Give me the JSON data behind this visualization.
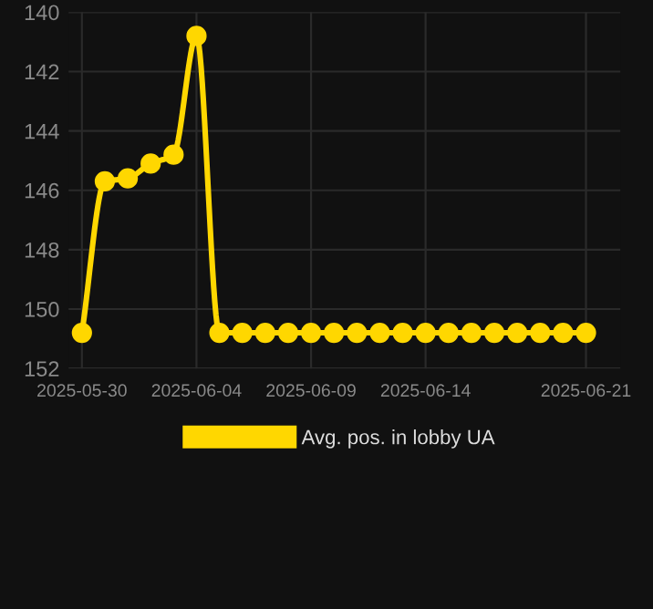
{
  "chart_data": {
    "type": "line",
    "x": [
      "2025-05-30",
      "2025-05-31",
      "2025-06-01",
      "2025-06-02",
      "2025-06-03",
      "2025-06-04",
      "2025-06-05",
      "2025-06-06",
      "2025-06-07",
      "2025-06-08",
      "2025-06-09",
      "2025-06-10",
      "2025-06-11",
      "2025-06-12",
      "2025-06-13",
      "2025-06-14",
      "2025-06-15",
      "2025-06-16",
      "2025-06-17",
      "2025-06-18",
      "2025-06-19",
      "2025-06-20",
      "2025-06-21"
    ],
    "series": [
      {
        "name": "Avg. pos. in lobby UA",
        "color": "#ffd700",
        "values": [
          150.8,
          145.7,
          145.6,
          145.1,
          144.8,
          140.8,
          150.8,
          150.8,
          150.8,
          150.8,
          150.8,
          150.8,
          150.8,
          150.8,
          150.8,
          150.8,
          150.8,
          150.8,
          150.8,
          150.8,
          150.8,
          150.8,
          150.8
        ]
      }
    ],
    "ylim": [
      152,
      140
    ],
    "yticks": [
      140,
      142,
      144,
      146,
      148,
      150,
      152
    ],
    "xticks": [
      {
        "value": "2025-05-30",
        "label": "2025-05-30"
      },
      {
        "value": "2025-06-04",
        "label": "2025-06-04"
      },
      {
        "value": "2025-06-09",
        "label": "2025-06-09"
      },
      {
        "value": "2025-06-14",
        "label": "2025-06-14"
      },
      {
        "value": "2025-06-21",
        "label": "2025-06-21"
      }
    ],
    "xlim": [
      "2025-05-29T10:00",
      "2025-06-22T12:00"
    ],
    "grid": true,
    "legend": "bottom",
    "marker": "circle",
    "line_style": "solid"
  }
}
